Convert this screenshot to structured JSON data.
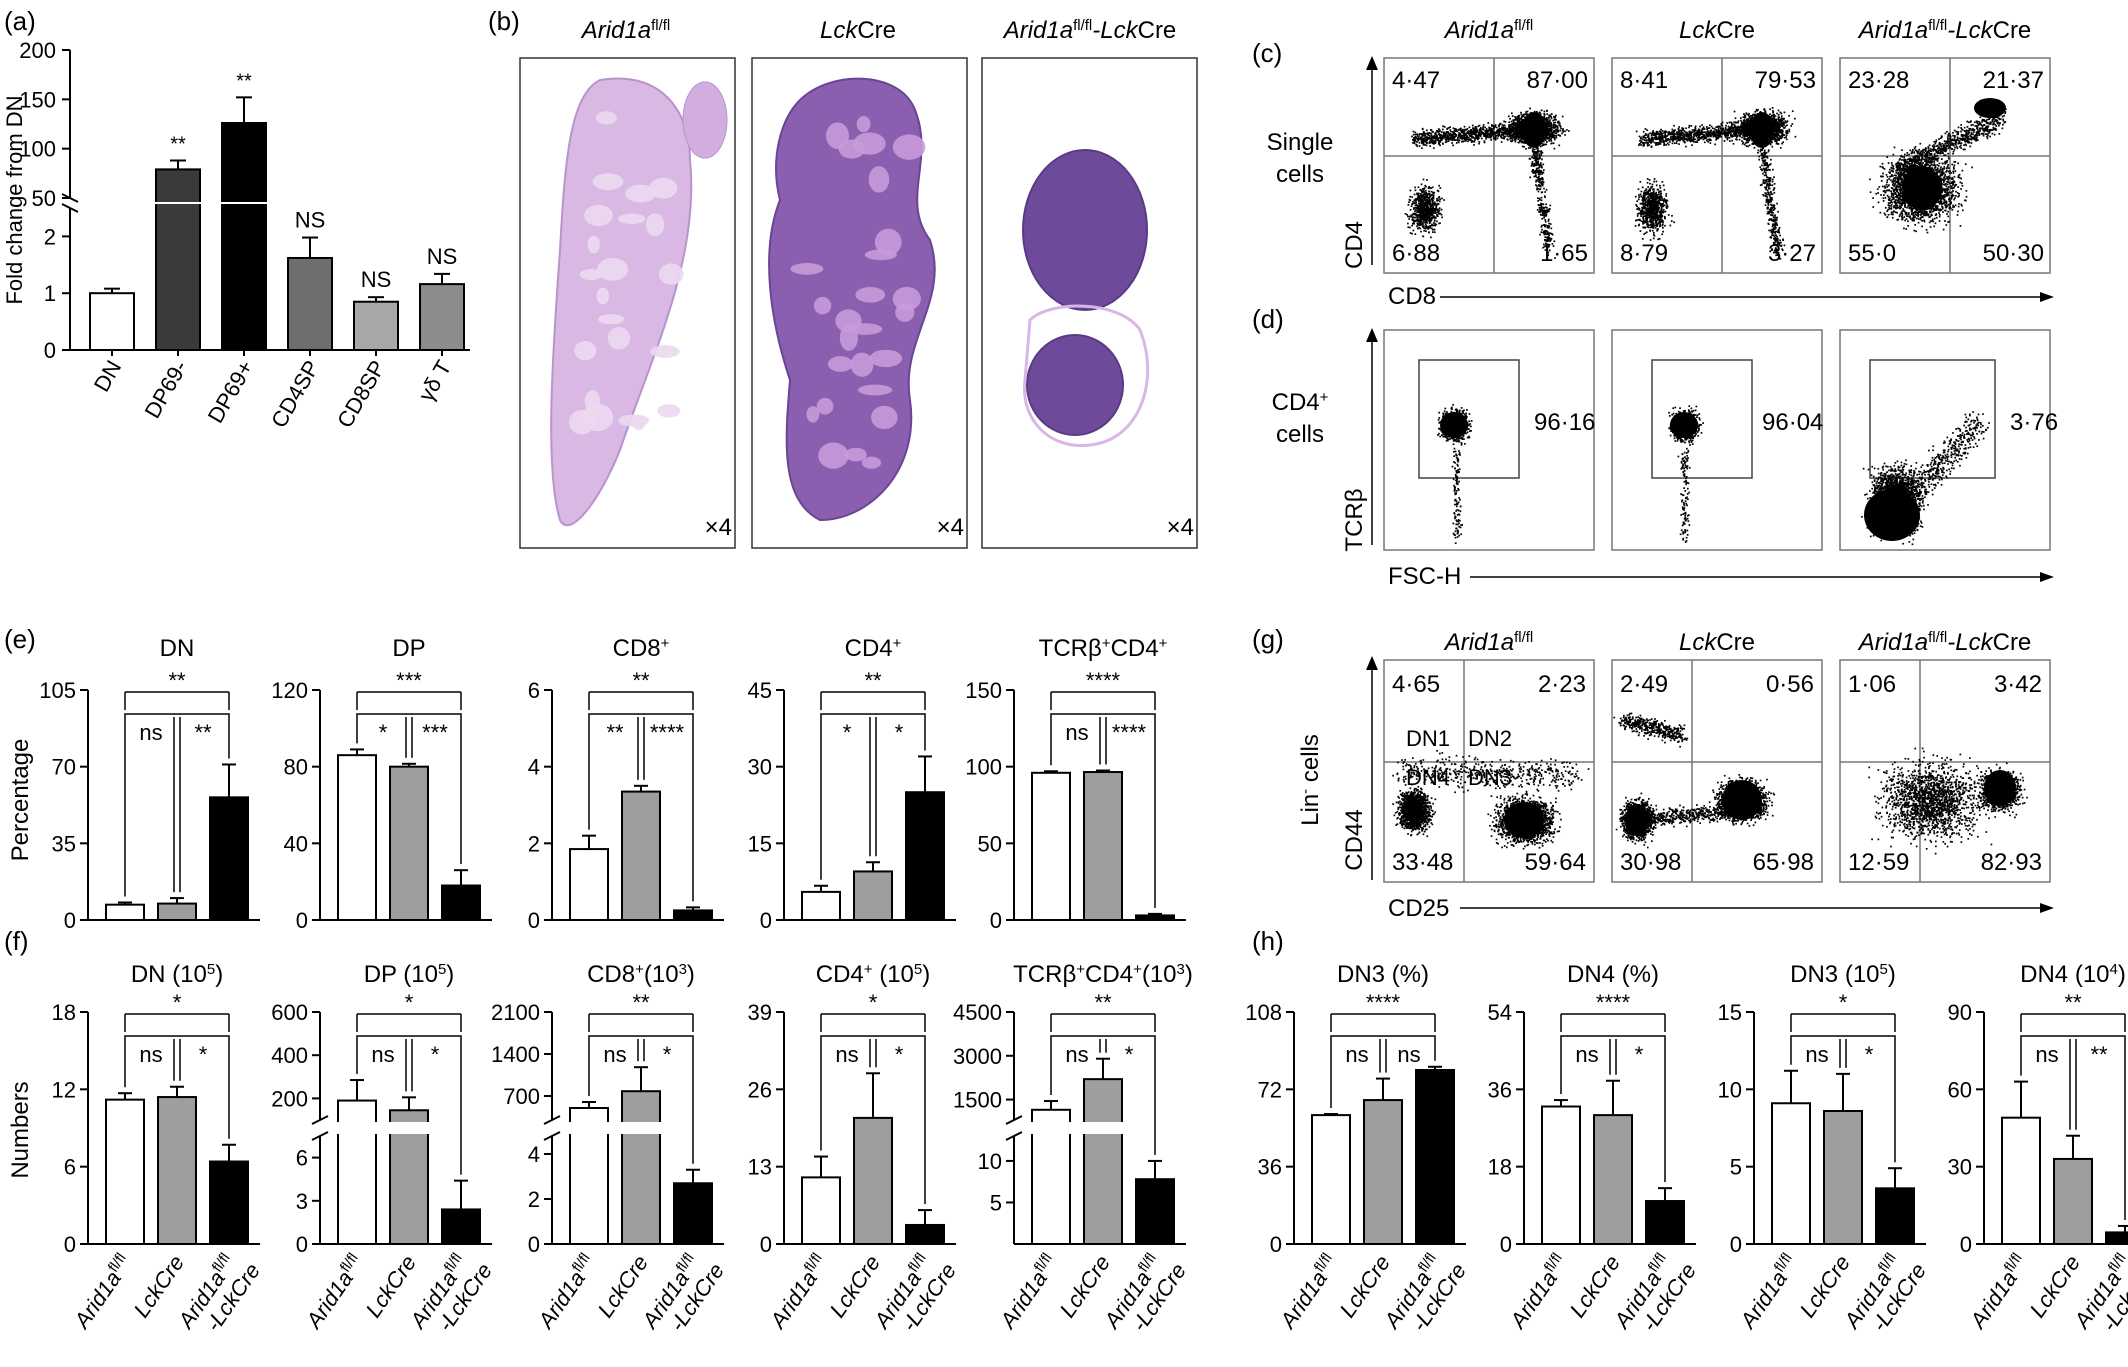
{
  "colors": {
    "white": "#ffffff",
    "dark": "#3a3a3a",
    "black": "#000000",
    "mid": "#6e6e6e",
    "light": "#a8a8a8",
    "grey": "#8c8c8c",
    "wt": "#ffffff",
    "ctrl": "#9e9e9e",
    "ko": "#000000",
    "he": "#c7a6d8",
    "heDark": "#5e3f8e"
  },
  "panels": {
    "a": "(a)",
    "b": "(b)",
    "c": "(c)",
    "d": "(d)",
    "e": "(e)",
    "f": "(f)",
    "g": "(g)",
    "h": "(h)"
  },
  "genotypes": {
    "g1": "Arid1a",
    "g1sup": "fl/fl",
    "g2": "Lck",
    "g2b": "Cre",
    "g3a": "Arid1a",
    "g3sup": "fl/fl",
    "g3b": "-Lck",
    "g3c": "Cre"
  },
  "xaxis_genotypes": {
    "g1": "Arid1a",
    "g1sup": "fl/fl",
    "g2": "LckCre",
    "g3a": "Arid1a",
    "g3sup": "fl/fl",
    "g3b": "-LckCre"
  },
  "histology": {
    "mag": "×4"
  },
  "flow": {
    "c": {
      "ylabel1": "Single",
      "ylabel2": "cells",
      "yaxis": "CD4",
      "xaxis": "CD8",
      "q": [
        [
          "4·47",
          "87·00",
          "6·88",
          "1·65"
        ],
        [
          "8·41",
          "79·53",
          "8·79",
          "3·27"
        ],
        [
          "23·28",
          "21·37",
          "55·0",
          "50·30"
        ]
      ]
    },
    "d": {
      "ylabel1": "CD4",
      "ylabel1sup": "+",
      "ylabel2": "cells",
      "yaxis": "TCRβ",
      "xaxis": "FSC-H",
      "g": [
        "96·16",
        "96·04",
        "3·76"
      ]
    },
    "g": {
      "ylabel1": "Lin",
      "ylabel1sup": "-",
      "ylabel2": "cells",
      "yaxis": "CD44",
      "xaxis": "CD25",
      "q": [
        [
          "4·65",
          "2·23",
          "33·48",
          "59·64"
        ],
        [
          "2·49",
          "0·56",
          "30·98",
          "65·98"
        ],
        [
          "1·06",
          "3·42",
          "12·59",
          "82·93"
        ]
      ],
      "dn": [
        "DN1",
        "DN2",
        "DN4",
        "DN3"
      ]
    }
  },
  "chart_data": [
    {
      "id": "a",
      "type": "bar",
      "ylabel": "Fold change from DN",
      "categories": [
        "DN",
        "DP69-",
        "DP69+",
        "CD4SP",
        "CD8SP",
        "γδ T"
      ],
      "values": [
        1,
        79,
        126,
        1.62,
        0.85,
        1.16
      ],
      "errors": [
        0.08,
        9,
        26,
        0.36,
        0.08,
        0.18
      ],
      "sig": [
        "",
        "**",
        "**",
        "NS",
        "NS",
        "NS"
      ],
      "ylim_lower": [
        0,
        2.5
      ],
      "ylim_upper": [
        50,
        200
      ],
      "yticks_lower": [
        "0",
        "1",
        "2"
      ],
      "yticks_upper": [
        "50",
        "100",
        "150",
        "200"
      ]
    },
    {
      "id": "e1",
      "type": "bar",
      "title": "DN",
      "ylabel": "Percentage",
      "ylim": [
        0,
        105
      ],
      "yticks": [
        "0",
        "35",
        "70",
        "105"
      ],
      "values": [
        7,
        7.5,
        56
      ],
      "errors": [
        1,
        2.5,
        15
      ],
      "brackets": [
        [
          "ns",
          "**"
        ],
        [
          "**"
        ]
      ]
    },
    {
      "id": "e2",
      "type": "bar",
      "title": "DP",
      "ylim": [
        0,
        120
      ],
      "yticks": [
        "0",
        "40",
        "80",
        "120"
      ],
      "values": [
        86,
        80,
        18
      ],
      "errors": [
        3,
        1.5,
        8
      ],
      "brackets": [
        [
          "*",
          "***"
        ],
        [
          "***"
        ]
      ]
    },
    {
      "id": "e3",
      "type": "bar",
      "title": "CD8",
      "titlesup": "+",
      "ylim": [
        0,
        6
      ],
      "yticks": [
        "0",
        "2",
        "4",
        "6"
      ],
      "values": [
        1.85,
        3.35,
        0.25
      ],
      "errors": [
        0.35,
        0.15,
        0.08
      ],
      "brackets": [
        [
          "**",
          "****"
        ],
        [
          "**"
        ]
      ]
    },
    {
      "id": "e4",
      "type": "bar",
      "title": "CD4",
      "titlesup": "+",
      "ylim": [
        0,
        45
      ],
      "yticks": [
        "0",
        "15",
        "30",
        "45"
      ],
      "values": [
        5.5,
        9.5,
        25
      ],
      "errors": [
        1.2,
        1.8,
        7
      ],
      "brackets": [
        [
          "*",
          "*"
        ],
        [
          "**"
        ]
      ]
    },
    {
      "id": "e5",
      "type": "bar",
      "title": "TCRβ",
      "titlesup": "+",
      "title2": "CD4",
      "title2sup": "+",
      "ylim": [
        0,
        150
      ],
      "yticks": [
        "0",
        "50",
        "100",
        "150"
      ],
      "values": [
        96,
        96.5,
        3
      ],
      "errors": [
        1,
        1,
        1
      ],
      "brackets": [
        [
          "ns",
          "****"
        ],
        [
          "****"
        ]
      ]
    },
    {
      "id": "f1",
      "type": "bar",
      "title": "DN (10",
      "titlesup": "5",
      "title3": ")",
      "ylabel": "Numbers",
      "ylim": [
        0,
        18
      ],
      "yticks": [
        "0",
        "6",
        "12",
        "18"
      ],
      "values": [
        11.2,
        11.4,
        6.4
      ],
      "errors": [
        0.5,
        0.8,
        1.3
      ],
      "brackets": [
        [
          "ns",
          "*"
        ],
        [
          "*"
        ]
      ]
    },
    {
      "id": "f2",
      "type": "bar",
      "title": "DP (10",
      "titlesup": "5",
      "title3": ")",
      "broken": true,
      "yticks_lower": [
        "0",
        "3",
        "6"
      ],
      "yticks_upper": [
        "200",
        "400",
        "600"
      ],
      "values": [
        190,
        145,
        2.4
      ],
      "errors": [
        95,
        60,
        2
      ],
      "brackets": [
        [
          "ns",
          "*"
        ],
        [
          "*"
        ]
      ]
    },
    {
      "id": "f3",
      "type": "bar",
      "title": "CD8",
      "titlesup": "+",
      "title3": "(10",
      "title3sup": "3",
      "title4": ")",
      "broken": true,
      "yticks_lower": [
        "0",
        "2",
        "4"
      ],
      "yticks_upper": [
        "700",
        "1400",
        "2100"
      ],
      "values": [
        500,
        780,
        2.7
      ],
      "errors": [
        100,
        400,
        0.6
      ],
      "brackets": [
        [
          "ns",
          "*"
        ],
        [
          "**"
        ]
      ]
    },
    {
      "id": "f4",
      "type": "bar",
      "title": "CD4",
      "titlesup": "+",
      "title3": " (10",
      "title3sup": "5",
      "title4": ")",
      "ylim": [
        0,
        39
      ],
      "yticks": [
        "0",
        "13",
        "26",
        "39"
      ],
      "values": [
        11.2,
        21.2,
        3.2
      ],
      "errors": [
        3.5,
        7.5,
        2.5
      ],
      "brackets": [
        [
          "ns",
          "*"
        ],
        [
          "*"
        ]
      ]
    },
    {
      "id": "f5",
      "type": "bar",
      "title": "TCRβ",
      "titlesup": "+",
      "title3": "CD4",
      "title3sup": "+",
      "title4": "(10",
      "title4sup": "3",
      "title5": ")",
      "broken": true,
      "yticks_lower": [
        "5",
        "10"
      ],
      "yticks_upper": [
        "1500",
        "3000",
        "4500"
      ],
      "values": [
        1150,
        2200,
        7.8
      ],
      "errors": [
        300,
        700,
        2.2
      ],
      "brackets": [
        [
          "ns",
          "*"
        ],
        [
          "**"
        ]
      ]
    },
    {
      "id": "h1",
      "type": "bar",
      "title": "DN3 (%)",
      "ylim": [
        0,
        108
      ],
      "yticks": [
        "0",
        "36",
        "72",
        "108"
      ],
      "values": [
        60,
        67,
        81
      ],
      "errors": [
        0.5,
        10,
        1.5
      ],
      "brackets": [
        [
          "ns",
          "ns"
        ],
        [
          "****"
        ]
      ]
    },
    {
      "id": "h2",
      "type": "bar",
      "title": "DN4 (%)",
      "ylim": [
        0,
        54
      ],
      "yticks": [
        "0",
        "18",
        "36",
        "54"
      ],
      "values": [
        32,
        30,
        10
      ],
      "errors": [
        1.5,
        8,
        3
      ],
      "brackets": [
        [
          "ns",
          "*"
        ],
        [
          "****"
        ]
      ]
    },
    {
      "id": "h3",
      "type": "bar",
      "title": "DN3 (10",
      "titlesup": "5",
      "title3": ")",
      "ylim": [
        0,
        15
      ],
      "yticks": [
        "0",
        "5",
        "10",
        "15"
      ],
      "values": [
        9.1,
        8.6,
        3.6
      ],
      "errors": [
        2.1,
        2.4,
        1.3
      ],
      "brackets": [
        [
          "ns",
          "*"
        ],
        [
          "*"
        ]
      ]
    },
    {
      "id": "h4",
      "type": "bar",
      "title": "DN4 (10",
      "titlesup": "4",
      "title3": ")",
      "ylim": [
        0,
        90
      ],
      "yticks": [
        "0",
        "30",
        "60",
        "90"
      ],
      "values": [
        49,
        33,
        4.5
      ],
      "errors": [
        14,
        9,
        2.5
      ],
      "brackets": [
        [
          "ns",
          "**"
        ],
        [
          "**"
        ]
      ]
    }
  ]
}
